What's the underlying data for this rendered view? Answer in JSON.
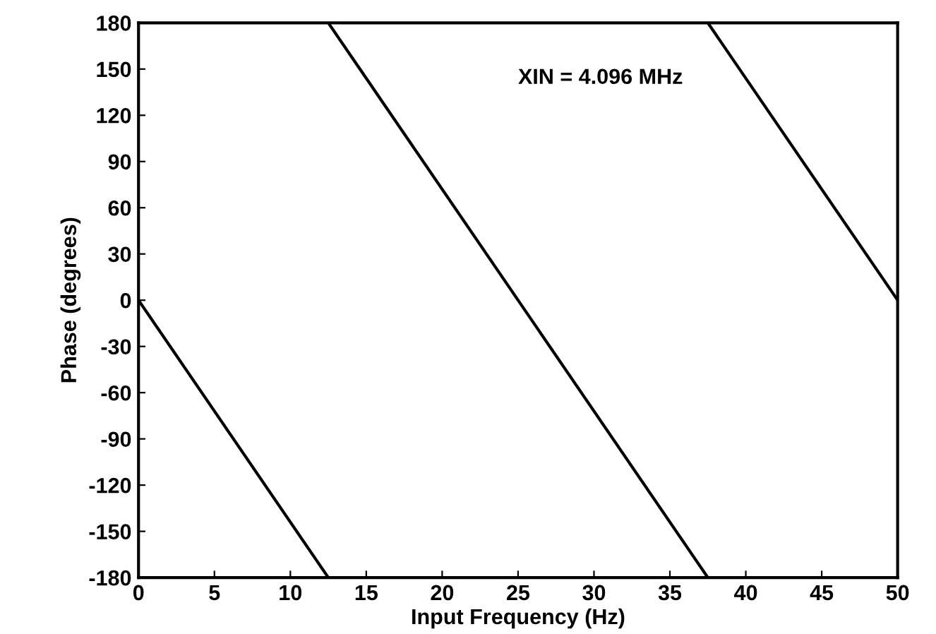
{
  "chart_data": {
    "type": "line",
    "xlabel": "Input Frequency (Hz)",
    "ylabel": "Phase (degrees)",
    "annotations": [
      "XIN = 4.096 MHz"
    ],
    "series": [
      {
        "color": "#000000",
        "x": [
          0,
          12.5
        ],
        "values": [
          0,
          -180
        ]
      },
      {
        "color": "#000000",
        "x": [
          12.5,
          37.5
        ],
        "values": [
          180,
          -180
        ]
      },
      {
        "color": "#000000",
        "x": [
          37.5,
          50
        ],
        "values": [
          180,
          0
        ]
      }
    ],
    "xlim": [
      0,
      50
    ],
    "xticks": [
      0,
      5,
      10,
      15,
      20,
      25,
      30,
      35,
      40,
      45,
      50
    ],
    "ylim": [
      -180,
      180
    ],
    "yticks": [
      -180,
      -150,
      -120,
      -90,
      -60,
      -30,
      0,
      30,
      60,
      90,
      120,
      150,
      180
    ],
    "grid": false,
    "legend": false,
    "marker": "none",
    "line_style": "solid"
  }
}
